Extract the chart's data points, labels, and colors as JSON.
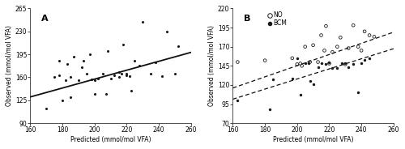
{
  "panel_A": {
    "label": "A",
    "scatter_x": [
      170,
      175,
      178,
      178,
      180,
      182,
      183,
      185,
      185,
      187,
      190,
      192,
      193,
      195,
      197,
      198,
      200,
      200,
      202,
      205,
      207,
      208,
      210,
      212,
      215,
      215,
      217,
      218,
      220,
      220,
      222,
      223,
      225,
      228,
      230,
      235,
      238,
      242,
      245,
      250,
      252
    ],
    "scatter_y": [
      112,
      160,
      163,
      185,
      125,
      155,
      180,
      130,
      160,
      192,
      155,
      175,
      185,
      165,
      195,
      157,
      155,
      135,
      158,
      165,
      135,
      200,
      158,
      163,
      168,
      160,
      165,
      210,
      165,
      163,
      162,
      140,
      185,
      178,
      245,
      165,
      183,
      162,
      230,
      165,
      207
    ],
    "reg_slope": 0.68,
    "reg_intercept": 21.23,
    "xlim": [
      160,
      260
    ],
    "ylim": [
      90,
      265
    ],
    "xticks": [
      160,
      180,
      200,
      220,
      240,
      260
    ],
    "yticks": [
      90,
      125,
      160,
      195,
      230,
      265
    ],
    "xlabel": "Predicted (mmol/mol VFA)",
    "ylabel": "Observed (mmol/mol VFA)"
  },
  "panel_B": {
    "label": "B",
    "no_x": [
      163,
      180,
      197,
      200,
      202,
      203,
      205,
      208,
      210,
      213,
      215,
      217,
      218,
      220,
      222,
      225,
      227,
      230,
      232,
      235,
      238,
      240,
      242,
      245,
      248
    ],
    "no_y": [
      150,
      152,
      155,
      147,
      148,
      145,
      170,
      150,
      172,
      150,
      185,
      165,
      197,
      148,
      163,
      170,
      182,
      147,
      168,
      198,
      170,
      165,
      190,
      185,
      183
    ],
    "bcm_x": [
      163,
      183,
      185,
      197,
      200,
      202,
      205,
      207,
      208,
      210,
      213,
      215,
      218,
      220,
      222,
      225,
      228,
      230,
      232,
      235,
      238,
      240,
      242,
      245
    ],
    "bcm_y": [
      100,
      88,
      127,
      128,
      155,
      107,
      148,
      148,
      125,
      121,
      143,
      148,
      147,
      150,
      142,
      142,
      148,
      148,
      143,
      147,
      110,
      148,
      153,
      155
    ],
    "no_slope": 0.73,
    "no_intercept": -0.82,
    "bcm_slope": 0.66,
    "bcm_intercept": -4.22,
    "xlim": [
      160,
      260
    ],
    "ylim": [
      70,
      220
    ],
    "xticks": [
      160,
      180,
      200,
      220,
      240,
      260
    ],
    "yticks": [
      70,
      95,
      120,
      145,
      170,
      195,
      220
    ],
    "xlabel": "Predicted (mmol/mol VFA)",
    "ylabel": "Observed (mmol/mol VFA)"
  },
  "background_color": "#ffffff",
  "scatter_color": "#1a1a1a",
  "line_color": "#111111",
  "fontsize_tick": 5.5,
  "fontsize_label": 5.5,
  "fontsize_panel": 8
}
